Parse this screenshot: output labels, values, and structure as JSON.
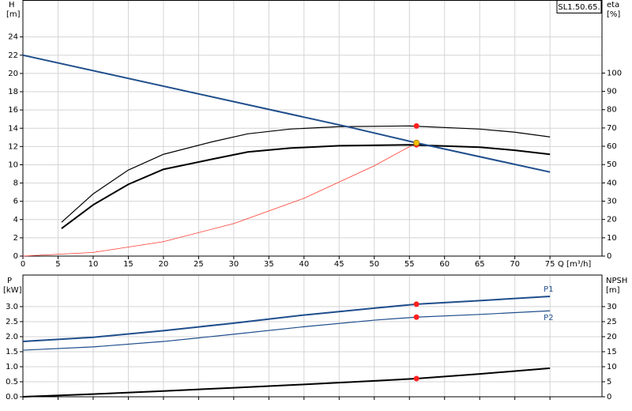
{
  "chart_data": [
    {
      "type": "line",
      "title": "SL1.50.65.",
      "xlabel": "Q [m³/h]",
      "ylabel": "H",
      "yunit": "[m]",
      "y2label": "eta",
      "y2unit": "[%]",
      "xlim": [
        0,
        82.4
      ],
      "xticks": [
        0,
        5,
        10,
        15,
        20,
        25,
        30,
        35,
        40,
        45,
        50,
        55,
        60,
        65,
        70,
        75
      ],
      "ylim": [
        0,
        28
      ],
      "yticks": [
        0,
        2,
        4,
        6,
        8,
        10,
        12,
        14,
        16,
        18,
        20,
        22,
        24
      ],
      "y2lim": [
        0,
        139.7
      ],
      "y2ticks": [
        0,
        10,
        20,
        30,
        40,
        50,
        60,
        70,
        80,
        90,
        100
      ],
      "grid": true,
      "series": [
        {
          "x": [
            0,
            10,
            20,
            30,
            40,
            50,
            56
          ],
          "values": [
            0,
            0.4,
            1.58,
            3.56,
            6.33,
            9.89,
            12.4
          ],
          "color": "#ff3b30",
          "width": 0.8,
          "axis": "y"
        },
        {
          "x": [
            5.5,
            10,
            15,
            20,
            27,
            32,
            38,
            45,
            55,
            65,
            70,
            75
          ],
          "values": [
            18.5,
            34,
            47,
            55.6,
            62.5,
            66.8,
            69.4,
            70.7,
            71.1,
            69.4,
            67.7,
            65.1
          ],
          "color": "#000000",
          "width": 1.2,
          "axis": "y2"
        },
        {
          "x": [
            5.5,
            10,
            15,
            20,
            27,
            32,
            38,
            45,
            55,
            65,
            70,
            75
          ],
          "values": [
            15.1,
            28,
            39.2,
            47.4,
            53,
            56.9,
            59,
            60.3,
            60.8,
            59.5,
            57.8,
            55.6
          ],
          "color": "#000000",
          "width": 2,
          "axis": "y2"
        },
        {
          "x": [
            0,
            46,
            56,
            75
          ],
          "values": [
            22,
            14.2,
            12.4,
            9.2
          ],
          "color": "#1f4e8c",
          "width": 2,
          "axis": "y"
        }
      ],
      "markers": [
        {
          "x": 56,
          "value": 71.1,
          "axis": "y2",
          "color": "#ff2020"
        },
        {
          "x": 56,
          "value": 60.8,
          "axis": "y2",
          "color": "#ff2020"
        },
        {
          "x": 56,
          "value": 12.4,
          "axis": "y",
          "color": "#f5c400"
        }
      ]
    },
    {
      "type": "line",
      "ylabel": "P",
      "yunit": "[kW]",
      "y2label": "NPSH",
      "y2unit": "[m]",
      "xlim": [
        0,
        82.4
      ],
      "ylim": [
        0,
        4.05
      ],
      "yticks": [
        {
          "value": 0,
          "label": "0.0"
        },
        0.5,
        {
          "value": 1,
          "label": "1.0"
        },
        1.5,
        {
          "value": 2,
          "label": "2.0"
        },
        2.5,
        {
          "value": 3,
          "label": "3.0"
        }
      ],
      "y2lim": [
        0,
        40.5
      ],
      "y2ticks": [
        0,
        5,
        10,
        15,
        20,
        25,
        30
      ],
      "grid": true,
      "series": [
        {
          "name": "P1",
          "x": [
            0,
            10,
            20,
            30,
            40,
            50,
            56,
            65,
            75
          ],
          "values": [
            1.84,
            1.98,
            2.2,
            2.45,
            2.72,
            2.95,
            3.08,
            3.2,
            3.34
          ],
          "color": "#1f4e8c",
          "width": 2,
          "axis": "y"
        },
        {
          "name": "P2",
          "x": [
            0,
            10,
            20,
            30,
            40,
            50,
            56,
            65,
            75
          ],
          "values": [
            1.55,
            1.66,
            1.84,
            2.08,
            2.33,
            2.55,
            2.65,
            2.74,
            2.86
          ],
          "color": "#1f4e8c",
          "width": 1.2,
          "axis": "y"
        },
        {
          "x": [
            0,
            10,
            20,
            30,
            40,
            50,
            56,
            65,
            75
          ],
          "values": [
            0,
            0.9,
            1.9,
            3.0,
            4.1,
            5.3,
            6.05,
            7.6,
            9.5
          ],
          "color": "#000000",
          "width": 2,
          "axis": "y2"
        }
      ],
      "markers": [
        {
          "x": 56,
          "value": 3.08,
          "axis": "y",
          "color": "#ff2020"
        },
        {
          "x": 56,
          "value": 2.65,
          "axis": "y",
          "color": "#ff2020"
        },
        {
          "x": 56,
          "value": 6.05,
          "axis": "y2",
          "color": "#ff2020"
        }
      ]
    }
  ]
}
